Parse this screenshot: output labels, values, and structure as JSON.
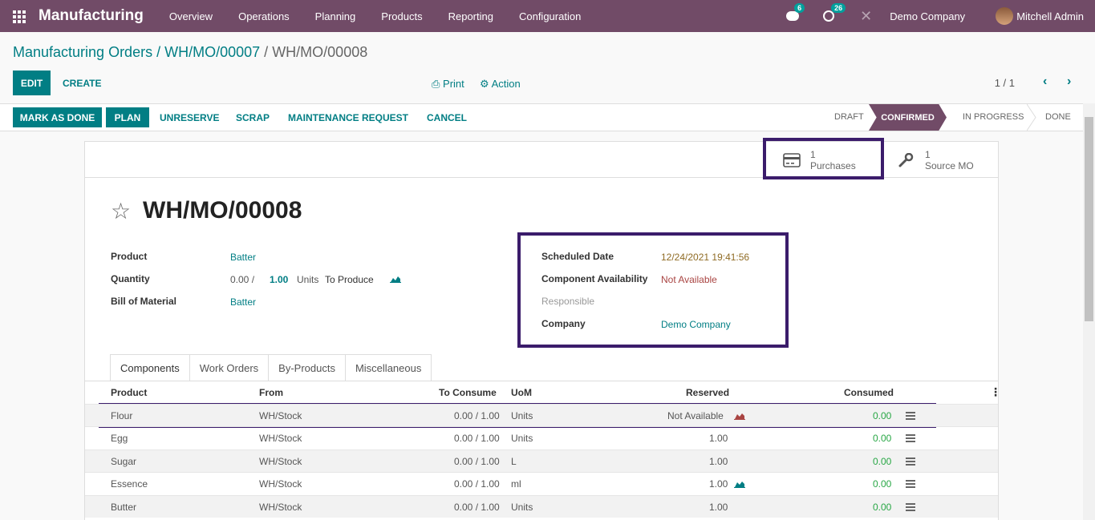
{
  "navbar": {
    "brand": "Manufacturing",
    "menu": [
      "Overview",
      "Operations",
      "Planning",
      "Products",
      "Reporting",
      "Configuration"
    ],
    "messages_count": "6",
    "activities_count": "26",
    "company": "Demo Company",
    "user": "Mitchell Admin"
  },
  "breadcrumb": {
    "root": "Manufacturing Orders",
    "parent": "WH/MO/00007",
    "current": "WH/MO/00008"
  },
  "controls": {
    "edit": "EDIT",
    "create": "CREATE",
    "print": "Print",
    "action": "Action",
    "pager": "1 / 1"
  },
  "statusbar": {
    "mark_done": "MARK AS DONE",
    "plan": "PLAN",
    "unreserve": "UNRESERVE",
    "scrap": "SCRAP",
    "maintenance": "MAINTENANCE REQUEST",
    "cancel": "CANCEL",
    "stages": [
      "DRAFT",
      "CONFIRMED",
      "IN PROGRESS",
      "DONE"
    ],
    "active_stage": "CONFIRMED"
  },
  "smart_buttons": [
    {
      "count": "1",
      "label": "Purchases",
      "icon": "credit-card-icon"
    },
    {
      "count": "1",
      "label": "Source MO",
      "icon": "wrench-icon"
    }
  ],
  "form": {
    "title": "WH/MO/00008",
    "product_label": "Product",
    "product": "Batter",
    "quantity_label": "Quantity",
    "qty_done": "0.00 /",
    "qty_total": "1.00",
    "qty_units": "Units",
    "to_produce": "To Produce",
    "bom_label": "Bill of Material",
    "bom": "Batter",
    "scheduled_label": "Scheduled Date",
    "scheduled": "12/24/2021 19:41:56",
    "availability_label": "Component Availability",
    "availability": "Not Available",
    "responsible_label": "Responsible",
    "company_label": "Company",
    "company": "Demo Company"
  },
  "tabs": [
    "Components",
    "Work Orders",
    "By-Products",
    "Miscellaneous"
  ],
  "table": {
    "headers": [
      "Product",
      "From",
      "To Consume",
      "UoM",
      "Reserved",
      "Consumed"
    ],
    "rows": [
      {
        "product": "Flour",
        "from": "WH/Stock",
        "to_consume": "0.00 / 1.00",
        "uom": "Units",
        "reserved": "Not Available",
        "consumed": "0.00"
      },
      {
        "product": "Egg",
        "from": "WH/Stock",
        "to_consume": "0.00 / 1.00",
        "uom": "Units",
        "reserved": "1.00",
        "consumed": "0.00"
      },
      {
        "product": "Sugar",
        "from": "WH/Stock",
        "to_consume": "0.00 / 1.00",
        "uom": "L",
        "reserved": "1.00",
        "consumed": "0.00"
      },
      {
        "product": "Essence",
        "from": "WH/Stock",
        "to_consume": "0.00 / 1.00",
        "uom": "ml",
        "reserved": "1.00",
        "consumed": "0.00"
      },
      {
        "product": "Butter",
        "from": "WH/Stock",
        "to_consume": "0.00 / 1.00",
        "uom": "Units",
        "reserved": "1.00",
        "consumed": "0.00"
      }
    ]
  },
  "colors": {
    "brand": "#714b67",
    "accent": "#017e84",
    "highlight": "#3b1c6b",
    "danger": "#a94442",
    "success": "#28a745"
  }
}
